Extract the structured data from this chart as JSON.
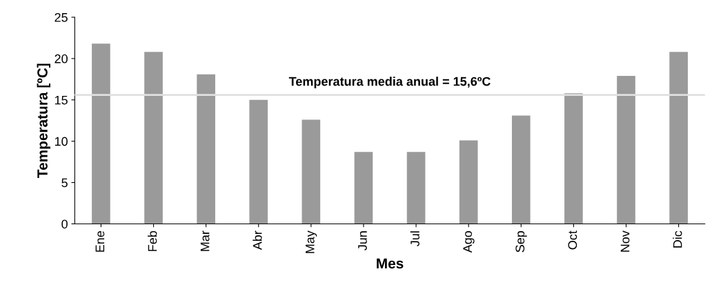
{
  "chart_data": {
    "type": "bar",
    "xlabel": "Mes",
    "ylabel": "Temperatura [ºC]",
    "categories": [
      "Ene",
      "Feb",
      "Mar",
      "Abr",
      "May",
      "Jun",
      "Jul",
      "Ago",
      "Sep",
      "Oct",
      "Nov",
      "Dic"
    ],
    "values": [
      21.8,
      20.8,
      18.1,
      15,
      12.6,
      8.7,
      8.7,
      10.1,
      13.1,
      15.8,
      17.9,
      20.8
    ],
    "color": "#9a9a9a",
    "ylim": [
      0,
      25
    ],
    "yticks": [
      0,
      5,
      10,
      15,
      20,
      25
    ],
    "ref_lines": [
      {
        "axis": "y",
        "value": 15.6,
        "label": "Temperatura media anual = 15,6ºC",
        "color": "#e0e0e0"
      }
    ]
  }
}
